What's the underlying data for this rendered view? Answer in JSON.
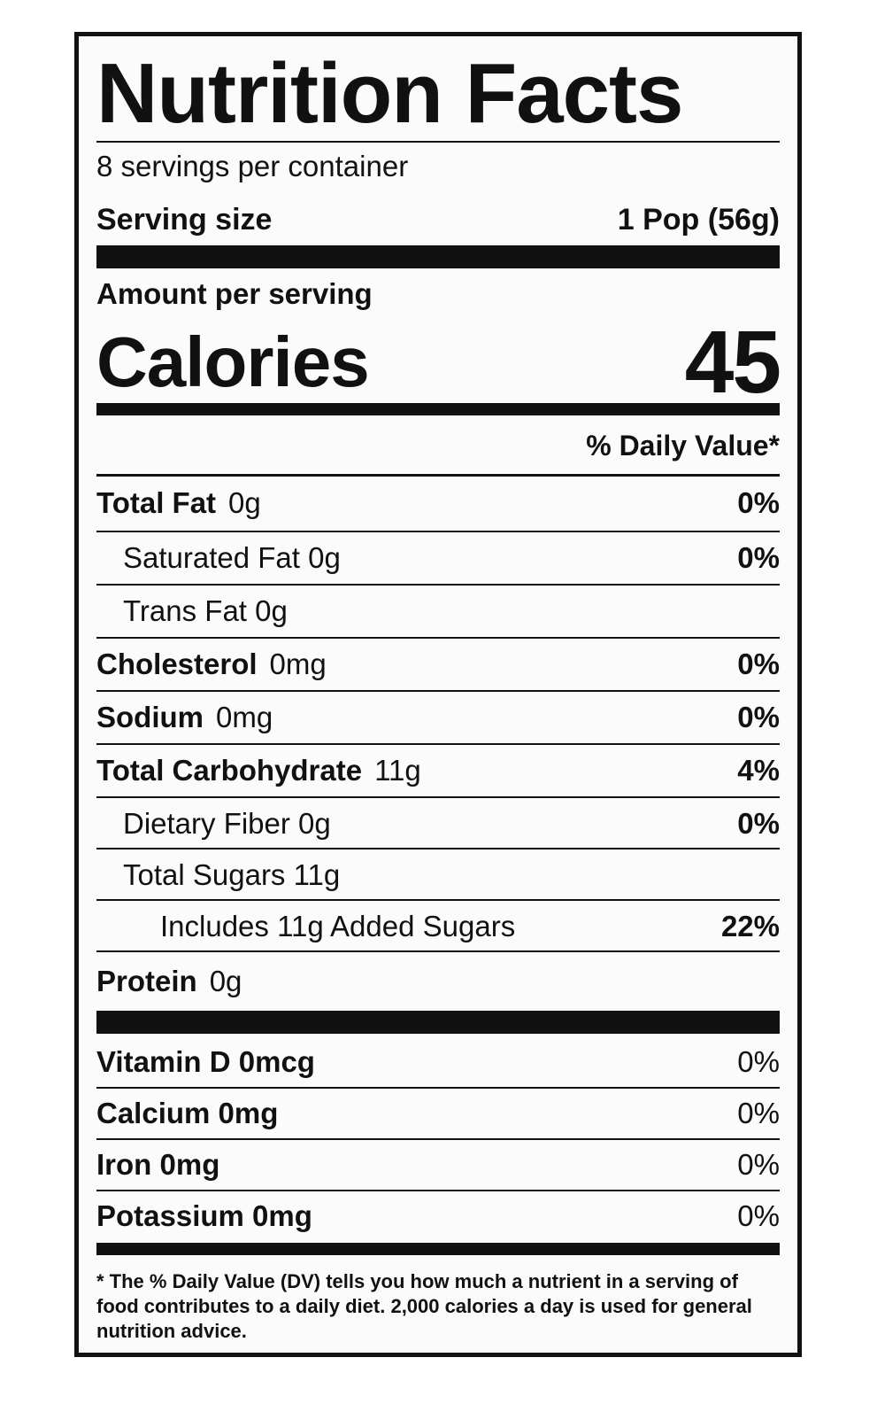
{
  "title": "Nutrition Facts",
  "servings_per_container": "8 servings per container",
  "serving_size_label": "Serving size",
  "serving_size_value": "1 Pop (56g)",
  "amount_per_serving": "Amount per serving",
  "calories_label": "Calories",
  "calories_value": "45",
  "daily_value_header": "% Daily Value*",
  "nutrients": [
    {
      "name": "Total Fat",
      "amount": "0g",
      "dv": "0%"
    },
    {
      "name": "Saturated Fat 0g",
      "dv": "0%"
    },
    {
      "name": "Trans Fat 0g"
    },
    {
      "name": "Cholesterol",
      "amount": "0mg",
      "dv": "0%"
    },
    {
      "name": "Sodium",
      "amount": "0mg",
      "dv": "0%"
    },
    {
      "name": "Total Carbohydrate",
      "amount": "11g",
      "dv": "4%"
    },
    {
      "name": "Dietary Fiber 0g",
      "dv": "0%"
    },
    {
      "name": "Total Sugars 11g"
    },
    {
      "name": "Includes 11g Added Sugars",
      "dv": "22%"
    },
    {
      "name": "Protein",
      "amount": "0g"
    }
  ],
  "vitamins": [
    {
      "name": "Vitamin D 0mcg",
      "dv": "0%"
    },
    {
      "name": "Calcium 0mg",
      "dv": "0%"
    },
    {
      "name": "Iron 0mg",
      "dv": "0%"
    },
    {
      "name": "Potassium 0mg",
      "dv": "0%"
    }
  ],
  "footnote": "* The % Daily Value (DV) tells you how much a nutrient in a serving of food contributes to a daily diet. 2,000 calories a day is used for general nutrition advice."
}
